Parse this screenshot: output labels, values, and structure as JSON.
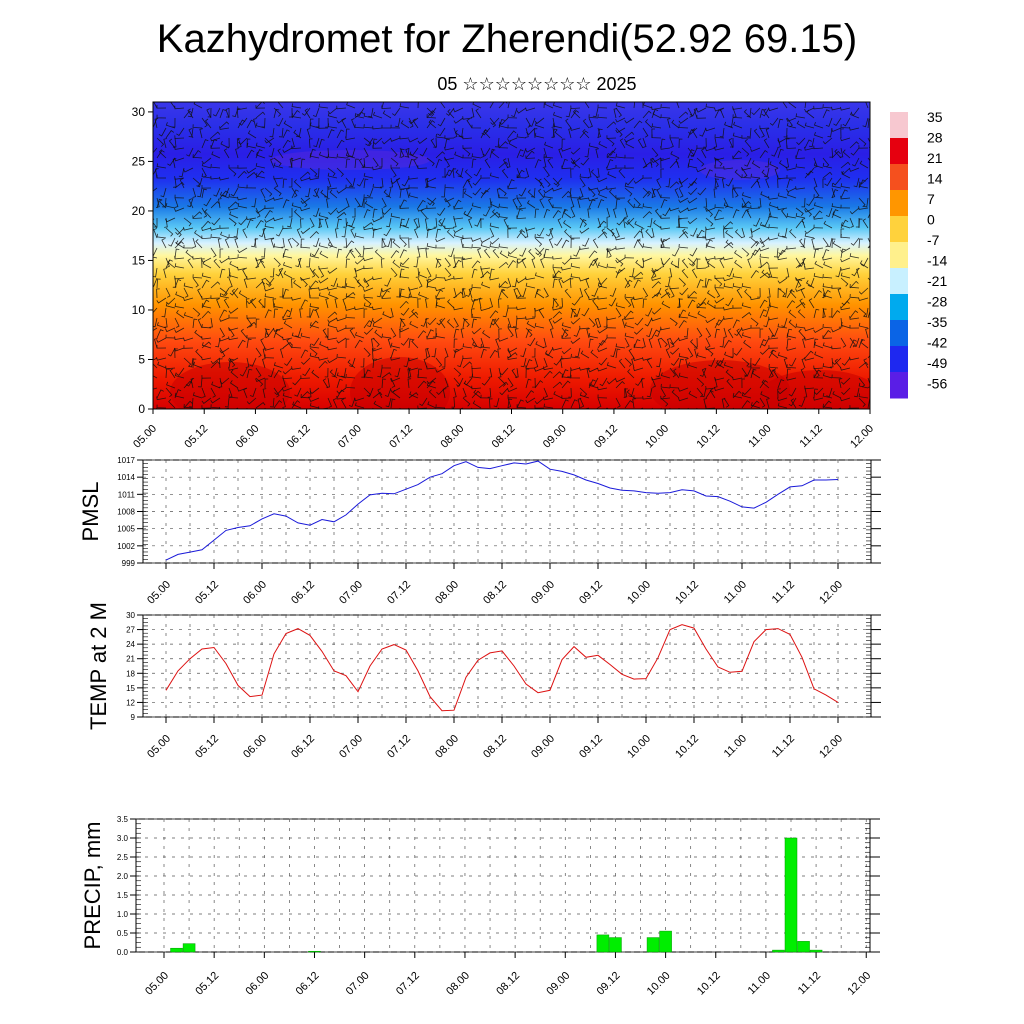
{
  "title": "Kazhydromet for Zherendi(52.92 69.15)",
  "subtitle": "05 ☆☆☆☆☆☆☆☆ 2025",
  "time_ticks": [
    "05.00",
    "05.12",
    "06.00",
    "06.12",
    "07.00",
    "07.12",
    "08.00",
    "08.12",
    "09.00",
    "09.12",
    "10.00",
    "10.12",
    "11.00",
    "11.12",
    "12.00"
  ],
  "colorbar": {
    "labels": [
      "35",
      "28",
      "21",
      "14",
      "7",
      "0",
      "-7",
      "-14",
      "-21",
      "-28",
      "-35",
      "-42",
      "-49",
      "-56"
    ],
    "colors": [
      "#f7c8d0",
      "#e6000f",
      "#f5501e",
      "#ff9600",
      "#ffd23c",
      "#fff08c",
      "#c8f0ff",
      "#00aaee",
      "#0a64e6",
      "#1e28f0",
      "#5a1ee6"
    ]
  },
  "chart_data": [
    {
      "type": "heatmap",
      "title": "",
      "xlabel": "",
      "ylabel": "",
      "x_ticks": [
        "05.00",
        "05.12",
        "06.00",
        "06.12",
        "07.00",
        "07.12",
        "08.00",
        "08.12",
        "09.00",
        "09.12",
        "10.00",
        "10.12",
        "11.00",
        "11.12",
        "12.00"
      ],
      "y_ticks": [
        0,
        5,
        10,
        15,
        20,
        25,
        30
      ],
      "ylim": [
        0,
        31
      ],
      "colorbar_range": [
        -56,
        35
      ],
      "overlay": "wind barbs"
    },
    {
      "type": "line",
      "ylabel": "PMSL",
      "ylim": [
        999,
        1017
      ],
      "y_ticks": [
        999,
        1002,
        1005,
        1008,
        1011,
        1014,
        1017
      ],
      "x_ticks": [
        "05.00",
        "05.12",
        "06.00",
        "06.12",
        "07.00",
        "07.12",
        "08.00",
        "08.12",
        "09.00",
        "09.12",
        "10.00",
        "10.12",
        "11.00",
        "11.12",
        "12.00"
      ],
      "color": "#1a1ad9",
      "x_hours": [
        0,
        3,
        6,
        9,
        12,
        15,
        18,
        21,
        24,
        27,
        30,
        33,
        36,
        39,
        42,
        45,
        48,
        51,
        54,
        57,
        60,
        63,
        66,
        69,
        72,
        75,
        78,
        81,
        84,
        87,
        90,
        93,
        96,
        99,
        102,
        105,
        108,
        111,
        114,
        117,
        120,
        123,
        126,
        129,
        132,
        135,
        138,
        141,
        144,
        147,
        150,
        153,
        156,
        159,
        162,
        165,
        168
      ],
      "values": [
        999.5,
        1000.5,
        1000.9,
        1001.3,
        1003.0,
        1004.7,
        1005.2,
        1005.5,
        1006.7,
        1007.6,
        1007.2,
        1006.0,
        1005.6,
        1006.6,
        1006.2,
        1007.4,
        1009.3,
        1010.9,
        1011.2,
        1011.1,
        1011.9,
        1012.7,
        1014.0,
        1014.6,
        1016.0,
        1016.7,
        1015.7,
        1015.5,
        1016.0,
        1016.5,
        1016.3,
        1016.8,
        1015.4,
        1015.0,
        1014.4,
        1013.5,
        1012.9,
        1012.1,
        1011.7,
        1011.6,
        1011.3,
        1011.2,
        1011.3,
        1011.8,
        1011.6,
        1010.7,
        1010.6,
        1009.8,
        1008.8,
        1008.6,
        1009.6,
        1011.0,
        1012.3,
        1012.5,
        1013.5,
        1013.5,
        1013.6
      ]
    },
    {
      "type": "line",
      "ylabel": "TEMP at 2 M",
      "ylim": [
        9,
        30
      ],
      "y_ticks": [
        9,
        12,
        15,
        18,
        21,
        24,
        27,
        30
      ],
      "x_ticks": [
        "05.00",
        "05.12",
        "06.00",
        "06.12",
        "07.00",
        "07.12",
        "08.00",
        "08.12",
        "09.00",
        "09.12",
        "10.00",
        "10.12",
        "11.00",
        "11.12",
        "12.00"
      ],
      "color": "#dd1111",
      "x_hours": [
        0,
        3,
        6,
        9,
        12,
        15,
        18,
        21,
        24,
        27,
        30,
        33,
        36,
        39,
        42,
        45,
        48,
        51,
        54,
        57,
        60,
        63,
        66,
        69,
        72,
        75,
        78,
        81,
        84,
        87,
        90,
        93,
        96,
        99,
        102,
        105,
        108,
        111,
        114,
        117,
        120,
        123,
        126,
        129,
        132,
        135,
        138,
        141,
        144,
        147,
        150,
        153,
        156,
        159,
        162,
        165,
        168
      ],
      "values": [
        14.5,
        18.5,
        21.0,
        23.0,
        23.3,
        20.0,
        15.5,
        13.2,
        13.5,
        22.0,
        26.2,
        27.2,
        25.8,
        22.5,
        18.5,
        17.5,
        14.2,
        19.5,
        23.0,
        23.9,
        22.8,
        18.5,
        13.2,
        10.3,
        10.4,
        17.2,
        20.7,
        22.2,
        22.6,
        19.5,
        15.8,
        14.0,
        14.5,
        20.8,
        23.5,
        21.3,
        21.7,
        19.8,
        17.8,
        16.8,
        16.9,
        21.2,
        27.0,
        28.0,
        27.3,
        23.0,
        19.3,
        18.2,
        18.4,
        24.5,
        27.0,
        27.2,
        26.0,
        21.3,
        14.8,
        13.5,
        12.0
      ]
    },
    {
      "type": "bar",
      "ylabel": "PRECIP, mm",
      "ylim": [
        0,
        3.5
      ],
      "y_ticks": [
        "0.0",
        "0.5",
        "1.0",
        "1.5",
        "2.0",
        "2.5",
        "3.0",
        "3.5"
      ],
      "x_ticks": [
        "05.00",
        "05.12",
        "06.00",
        "06.12",
        "07.00",
        "07.12",
        "08.00",
        "08.12",
        "09.00",
        "09.12",
        "10.00",
        "10.12",
        "11.00",
        "11.12",
        "12.00"
      ],
      "color": "#00ee00",
      "bars": [
        {
          "hour": 3,
          "value": 0.1
        },
        {
          "hour": 6,
          "value": 0.22
        },
        {
          "hour": 36,
          "value": 0.02
        },
        {
          "hour": 105,
          "value": 0.45
        },
        {
          "hour": 108,
          "value": 0.38
        },
        {
          "hour": 117,
          "value": 0.38
        },
        {
          "hour": 120,
          "value": 0.55
        },
        {
          "hour": 147,
          "value": 0.05
        },
        {
          "hour": 150,
          "value": 3.0
        },
        {
          "hour": 153,
          "value": 0.28
        },
        {
          "hour": 156,
          "value": 0.05
        }
      ]
    }
  ]
}
